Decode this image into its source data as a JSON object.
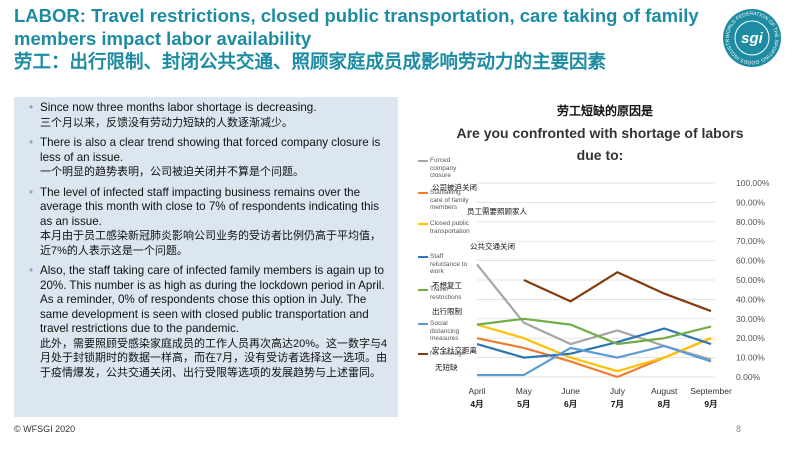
{
  "header": {
    "title_en": "LABOR: Travel restrictions, closed public transportation, care taking of family members impact labor availability",
    "title_cn": "劳工：出行限制、封闭公共交通、照顾家庭成员成影响劳动力的主要因素"
  },
  "logo": {
    "text": "sgi",
    "ring": "WORLD FEDERATION OF THE SPORTING GOODS INDUSTRY"
  },
  "bullets": [
    {
      "en": "Since now three months labor shortage is decreasing.",
      "cn": "三个月以来，反馈没有劳动力短缺的人数逐渐减少。"
    },
    {
      "en": "There is also a clear trend showing that forced company closure is less of an issue.",
      "cn": "一个明显的趋势表明，公司被迫关闭并不算是个问题。"
    },
    {
      "en": "The level of infected staff impacting business remains over the average this month with close to 7% of respondents indicating this as an issue.",
      "cn": "本月由于员工感染新冠肺炎影响公司业务的受访者比例仍高于平均值，近7%的人表示这是一个问题。"
    },
    {
      "en": "Also, the staff taking care of infected family members is again up to 20%. This number is as high as during the lockdown period in April. As a reminder, 0% of respondents chose this option in July. The same development is seen with closed public transportation and travel restrictions due to the pandemic.",
      "cn": "此外，需要照顾受感染家庭成员的工作人员再次高达20%。这一数字与4月处于封锁期时的数据一样高，而在7月，没有受访者选择这一选项。由于疫情爆发，公共交通关闭、出行受限等选项的发展趋势与上述雷同。"
    }
  ],
  "footer": {
    "copyright": "© WFSGI 2020",
    "page": "8"
  },
  "chart_data": {
    "type": "line",
    "title_cn": "劳工短缺的原因是",
    "title": "Are you confronted with shortage of labors due to:",
    "categories": [
      "April",
      "May",
      "June",
      "July",
      "August",
      "September"
    ],
    "categories_cn": [
      "4月",
      "5月",
      "6月",
      "7月",
      "8月",
      "9月"
    ],
    "series": [
      {
        "name": "Forced company closure",
        "name_cn": "公司被迫关闭",
        "color": "#a6a6a6",
        "values": [
          58,
          28,
          17,
          24,
          16,
          9
        ]
      },
      {
        "name": "Stafftaking care of family members",
        "name_cn": "员工需要照顾家人",
        "color": "#ed7d31",
        "values": [
          20,
          15,
          8,
          0,
          10,
          20
        ]
      },
      {
        "name": "Closed public transportation",
        "name_cn": "公共交通关闭",
        "color": "#ffc000",
        "values": [
          27,
          20,
          10,
          3,
          10,
          20
        ]
      },
      {
        "name": "Staff reluctance to work",
        "name_cn": "不想复工",
        "color": "#2e75b6",
        "values": [
          17,
          10,
          12,
          18,
          25,
          17
        ]
      },
      {
        "name": "Travel restrictions",
        "name_cn": "出行限制",
        "color": "#70ad47",
        "values": [
          27,
          30,
          27,
          17,
          20,
          26
        ]
      },
      {
        "name": "Social distancing measures",
        "name_cn": "安全社交距离",
        "color": "#5b9bd5",
        "values": [
          1,
          1,
          15,
          10,
          16,
          8
        ]
      },
      {
        "name": "No shortage",
        "name_cn": "无短缺",
        "color": "#843c0c",
        "values": [
          null,
          50,
          39,
          54,
          43,
          34
        ]
      }
    ],
    "ylim": [
      0,
      100
    ],
    "yticks": [
      {
        "value": 0,
        "label": "0.00%"
      },
      {
        "value": 10,
        "label": "10.00%"
      },
      {
        "value": 20,
        "label": "20.00%"
      },
      {
        "value": 30,
        "label": "30.00%"
      },
      {
        "value": 40,
        "label": "40.00%"
      },
      {
        "value": 50,
        "label": "50.00%"
      },
      {
        "value": 60,
        "label": "60.00%"
      },
      {
        "value": 70,
        "label": "70.00%"
      },
      {
        "value": 80,
        "label": "80.00%"
      },
      {
        "value": 90,
        "label": "90.00%"
      },
      {
        "value": 100,
        "label": "100.00%"
      }
    ],
    "grid": true
  }
}
